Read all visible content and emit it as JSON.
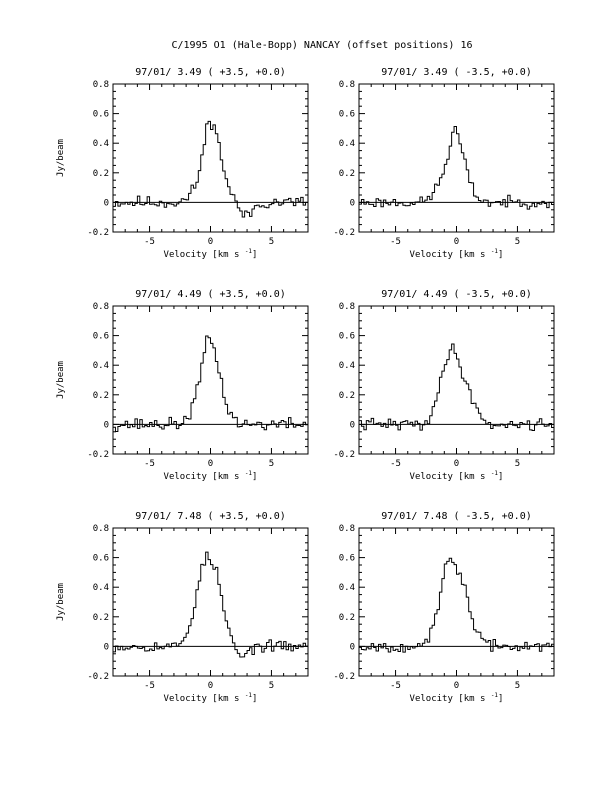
{
  "figure_title": "C/1995 O1 (Hale-Bopp)   NANCAY     (offset positions)   16",
  "chart_data": [
    {
      "type": "line",
      "title": "97/01/ 3.49  ( +3.5, +0.0)",
      "xlabel": "Velocity [km s",
      "xlabel_sup": "-1",
      "xlabel_close": "]",
      "ylabel": "Jy/beam",
      "xlim": [
        -8,
        8
      ],
      "ylim": [
        -0.2,
        0.8
      ],
      "xticks_major": [
        -5,
        0,
        5
      ],
      "yticks_major": [
        -0.2,
        0,
        0.2,
        0.4,
        0.6,
        0.8
      ],
      "ytick_labels": [
        "-0.2",
        "0",
        "0.2",
        "0.4",
        "0.6",
        "0.8"
      ],
      "series": [
        {
          "profile": [
            [
              -2.6,
              0.0
            ],
            [
              -2.0,
              0.02
            ],
            [
              -1.6,
              0.06
            ],
            [
              -1.2,
              0.12
            ],
            [
              -0.8,
              0.25
            ],
            [
              -0.5,
              0.4
            ],
            [
              -0.3,
              0.5
            ],
            [
              -0.1,
              0.57
            ],
            [
              0.1,
              0.55
            ],
            [
              0.3,
              0.52
            ],
            [
              0.6,
              0.42
            ],
            [
              0.9,
              0.3
            ],
            [
              1.2,
              0.2
            ],
            [
              1.5,
              0.1
            ],
            [
              1.9,
              0.03
            ],
            [
              2.4,
              -0.05
            ],
            [
              2.9,
              -0.1
            ],
            [
              3.3,
              -0.07
            ],
            [
              3.8,
              -0.02
            ],
            [
              4.5,
              0.0
            ]
          ],
          "noise": 0.03,
          "seed": 11
        }
      ]
    },
    {
      "type": "line",
      "title": "97/01/ 3.49  ( -3.5, +0.0)",
      "xlabel": "Velocity [km s",
      "xlabel_sup": "-1",
      "xlabel_close": "]",
      "ylabel": "",
      "xlim": [
        -8,
        8
      ],
      "ylim": [
        -0.2,
        0.8
      ],
      "xticks_major": [
        -5,
        0,
        5
      ],
      "yticks_major": [
        -0.2,
        0,
        0.2,
        0.4,
        0.6,
        0.8
      ],
      "ytick_labels": [
        "-0.2",
        "0",
        "0.2",
        "0.4",
        "0.6",
        "0.8"
      ],
      "series": [
        {
          "profile": [
            [
              -2.8,
              0.0
            ],
            [
              -2.2,
              0.03
            ],
            [
              -1.8,
              0.08
            ],
            [
              -1.4,
              0.14
            ],
            [
              -1.0,
              0.22
            ],
            [
              -0.6,
              0.35
            ],
            [
              -0.3,
              0.45
            ],
            [
              -0.1,
              0.51
            ],
            [
              0.2,
              0.43
            ],
            [
              0.5,
              0.33
            ],
            [
              0.8,
              0.23
            ],
            [
              1.1,
              0.14
            ],
            [
              1.5,
              0.06
            ],
            [
              2.0,
              0.02
            ],
            [
              2.6,
              0.0
            ]
          ],
          "noise": 0.025,
          "seed": 23
        }
      ]
    },
    {
      "type": "line",
      "title": "97/01/ 4.49  ( +3.5, +0.0)",
      "xlabel": "Velocity [km s",
      "xlabel_sup": "-1",
      "xlabel_close": "]",
      "ylabel": "Jy/beam",
      "xlim": [
        -8,
        8
      ],
      "ylim": [
        -0.2,
        0.8
      ],
      "xticks_major": [
        -5,
        0,
        5
      ],
      "yticks_major": [
        -0.2,
        0,
        0.2,
        0.4,
        0.6,
        0.8
      ],
      "ytick_labels": [
        "-0.2",
        "0",
        "0.2",
        "0.4",
        "0.6",
        "0.8"
      ],
      "series": [
        {
          "profile": [
            [
              -2.6,
              0.0
            ],
            [
              -2.1,
              0.03
            ],
            [
              -1.7,
              0.08
            ],
            [
              -1.3,
              0.16
            ],
            [
              -0.9,
              0.3
            ],
            [
              -0.6,
              0.45
            ],
            [
              -0.3,
              0.55
            ],
            [
              -0.1,
              0.58
            ],
            [
              0.2,
              0.54
            ],
            [
              0.5,
              0.45
            ],
            [
              0.8,
              0.32
            ],
            [
              1.1,
              0.2
            ],
            [
              1.5,
              0.1
            ],
            [
              1.9,
              0.04
            ],
            [
              2.5,
              0.0
            ]
          ],
          "noise": 0.03,
          "seed": 37
        }
      ]
    },
    {
      "type": "line",
      "title": "97/01/ 4.49  ( -3.5, +0.0)",
      "xlabel": "Velocity [km s",
      "xlabel_sup": "-1",
      "xlabel_close": "]",
      "ylabel": "",
      "xlim": [
        -8,
        8
      ],
      "ylim": [
        -0.2,
        0.8
      ],
      "xticks_major": [
        -5,
        0,
        5
      ],
      "yticks_major": [
        -0.2,
        0,
        0.2,
        0.4,
        0.6,
        0.8
      ],
      "ytick_labels": [
        "-0.2",
        "0",
        "0.2",
        "0.4",
        "0.6",
        "0.8"
      ],
      "series": [
        {
          "profile": [
            [
              -2.8,
              0.0
            ],
            [
              -2.3,
              0.04
            ],
            [
              -1.8,
              0.12
            ],
            [
              -1.4,
              0.25
            ],
            [
              -1.0,
              0.4
            ],
            [
              -0.7,
              0.48
            ],
            [
              -0.4,
              0.51
            ],
            [
              -0.1,
              0.48
            ],
            [
              0.2,
              0.42
            ],
            [
              0.5,
              0.35
            ],
            [
              0.8,
              0.28
            ],
            [
              1.1,
              0.22
            ],
            [
              1.4,
              0.16
            ],
            [
              1.7,
              0.1
            ],
            [
              2.1,
              0.04
            ],
            [
              2.7,
              0.0
            ]
          ],
          "noise": 0.028,
          "seed": 41
        }
      ]
    },
    {
      "type": "line",
      "title": "97/01/ 7.48  ( +3.5, +0.0)",
      "xlabel": "Velocity [km s",
      "xlabel_sup": "-1",
      "xlabel_close": "]",
      "ylabel": "Jy/beam",
      "xlim": [
        -8,
        8
      ],
      "ylim": [
        -0.2,
        0.8
      ],
      "xticks_major": [
        -5,
        0,
        5
      ],
      "yticks_major": [
        -0.2,
        0,
        0.2,
        0.4,
        0.6,
        0.8
      ],
      "ytick_labels": [
        "-0.2",
        "0",
        "0.2",
        "0.4",
        "0.6",
        "0.8"
      ],
      "series": [
        {
          "profile": [
            [
              -2.8,
              0.0
            ],
            [
              -2.3,
              0.03
            ],
            [
              -1.9,
              0.1
            ],
            [
              -1.5,
              0.2
            ],
            [
              -1.1,
              0.38
            ],
            [
              -0.7,
              0.53
            ],
            [
              -0.4,
              0.6
            ],
            [
              -0.1,
              0.6
            ],
            [
              0.2,
              0.55
            ],
            [
              0.5,
              0.5
            ],
            [
              0.8,
              0.38
            ],
            [
              1.1,
              0.25
            ],
            [
              1.4,
              0.13
            ],
            [
              1.8,
              0.04
            ],
            [
              2.2,
              -0.05
            ],
            [
              2.6,
              -0.08
            ],
            [
              3.1,
              -0.04
            ],
            [
              3.7,
              0.0
            ]
          ],
          "noise": 0.025,
          "seed": 53
        }
      ]
    },
    {
      "type": "line",
      "title": "97/01/ 7.48  ( -3.5, +0.0)",
      "xlabel": "Velocity [km s",
      "xlabel_sup": "-1",
      "xlabel_close": "]",
      "ylabel": "",
      "xlim": [
        -8,
        8
      ],
      "ylim": [
        -0.2,
        0.8
      ],
      "xticks_major": [
        -5,
        0,
        5
      ],
      "yticks_major": [
        -0.2,
        0,
        0.2,
        0.4,
        0.6,
        0.8
      ],
      "ytick_labels": [
        "-0.2",
        "0",
        "0.2",
        "0.4",
        "0.6",
        "0.8"
      ],
      "series": [
        {
          "profile": [
            [
              -2.9,
              0.0
            ],
            [
              -2.4,
              0.03
            ],
            [
              -2.0,
              0.1
            ],
            [
              -1.6,
              0.22
            ],
            [
              -1.2,
              0.4
            ],
            [
              -0.9,
              0.55
            ],
            [
              -0.6,
              0.6
            ],
            [
              -0.3,
              0.55
            ],
            [
              0.0,
              0.52
            ],
            [
              0.3,
              0.5
            ],
            [
              0.6,
              0.42
            ],
            [
              0.9,
              0.32
            ],
            [
              1.2,
              0.22
            ],
            [
              1.5,
              0.14
            ],
            [
              1.9,
              0.07
            ],
            [
              2.4,
              0.02
            ],
            [
              3.0,
              0.0
            ]
          ],
          "noise": 0.025,
          "seed": 67
        }
      ]
    }
  ]
}
